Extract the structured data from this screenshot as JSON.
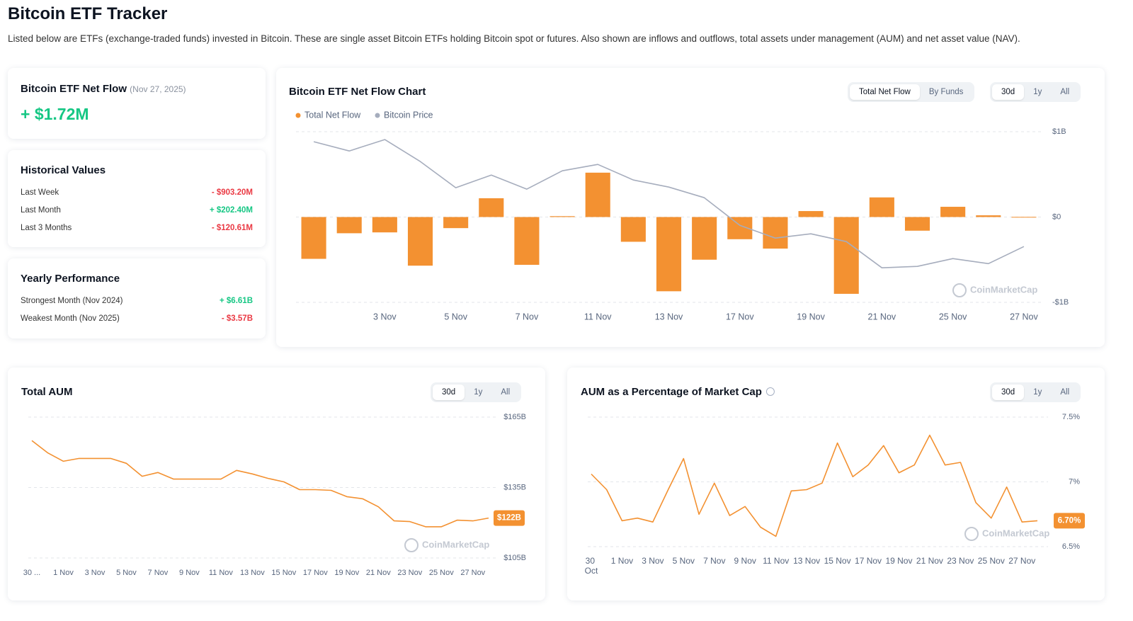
{
  "header": {
    "title": "Bitcoin ETF Tracker",
    "description": "Listed below are ETFs (exchange-traded funds) invested in Bitcoin. These are single asset Bitcoin ETFs holding Bitcoin spot or futures. Also shown are inflows and outflows, total assets under management (AUM) and net asset value (NAV)."
  },
  "net_flow_card": {
    "title": "Bitcoin ETF Net Flow",
    "date": "(Nov 27, 2025)",
    "value": "+ $1.72M"
  },
  "historical_values": {
    "title": "Historical Values",
    "rows": [
      {
        "label": "Last Week",
        "value": "- $903.20M"
      },
      {
        "label": "Last Month",
        "value": "+ $202.40M"
      },
      {
        "label": "Last 3 Months",
        "value": "- $120.61M"
      }
    ]
  },
  "yearly_performance": {
    "title": "Yearly Performance",
    "rows": [
      {
        "label": "Strongest Month (Nov 2024)",
        "value": "+ $6.61B"
      },
      {
        "label": "Weakest Month (Nov 2025)",
        "value": "- $3.57B"
      }
    ]
  },
  "tabs": {
    "view": [
      "Total Net Flow",
      "By Funds"
    ],
    "range": [
      "30d",
      "1y",
      "All"
    ]
  },
  "watermark": "CoinMarketCap",
  "chart_data": [
    {
      "type": "bar",
      "title": "Bitcoin ETF Net Flow Chart",
      "categories": [
        null,
        null,
        "3 Nov",
        null,
        "5 Nov",
        null,
        "7 Nov",
        null,
        "11 Nov",
        null,
        "13 Nov",
        null,
        "17 Nov",
        null,
        "19 Nov",
        null,
        "21 Nov",
        null,
        "25 Nov",
        null,
        "27 Nov"
      ],
      "series": [
        {
          "name": "Total Net Flow",
          "type": "bar",
          "color": "#f39131",
          "values": [
            -0.49,
            -0.19,
            -0.18,
            -0.57,
            -0.13,
            0.22,
            -0.56,
            0.01,
            0.52,
            -0.29,
            -0.87,
            -0.5,
            -0.26,
            -0.37,
            0.07,
            -0.9,
            0.23,
            -0.16,
            0.12,
            0.02,
            0.00172
          ]
        },
        {
          "name": "Bitcoin Price",
          "type": "line",
          "color": "#a6adbd",
          "axis": "y2",
          "values": [
            109570,
            107700,
            110000,
            105550,
            100240,
            102820,
            99950,
            103680,
            104970,
            101810,
            100380,
            98220,
            92620,
            90040,
            90900,
            89320,
            84000,
            84290,
            85870,
            84860,
            88310
          ]
        }
      ],
      "ylim": [
        -1,
        1
      ],
      "yticks": [
        {
          "value": 1,
          "label": "$1B"
        },
        {
          "value": 0,
          "label": "$0"
        },
        {
          "value": -1,
          "label": "-$1B"
        }
      ],
      "y2lim": [
        77000,
        111600
      ],
      "grid": true
    },
    {
      "type": "line",
      "title": "Total AUM",
      "color": "#f39131",
      "categories": [
        "30 ...",
        null,
        "1 Nov",
        null,
        "3 Nov",
        null,
        "5 Nov",
        null,
        "7 Nov",
        null,
        "9 Nov",
        null,
        "11 Nov",
        null,
        "13 Nov",
        null,
        "15 Nov",
        null,
        "17 Nov",
        null,
        "19 Nov",
        null,
        "21 Nov",
        null,
        "23 Nov",
        null,
        "25 Nov",
        null,
        "27 Nov",
        null
      ],
      "values": [
        155.0,
        149.8,
        146.2,
        147.4,
        147.4,
        147.4,
        145.3,
        139.8,
        141.4,
        138.6,
        138.6,
        138.6,
        138.6,
        142.3,
        140.8,
        138.9,
        137.4,
        134.1,
        134.1,
        133.8,
        131.1,
        130.2,
        126.8,
        120.8,
        120.5,
        118.3,
        118.3,
        121.1,
        120.8,
        122
      ],
      "value_labels": [
        null,
        null,
        null,
        null,
        null,
        null,
        null,
        null,
        null,
        null,
        null,
        null,
        null,
        null,
        null,
        null,
        null,
        null,
        null,
        null,
        null,
        null,
        null,
        null,
        null,
        null,
        null,
        null,
        null,
        "$122B"
      ],
      "ylim": [
        105,
        165
      ],
      "yticks": [
        {
          "value": 165,
          "label": "$165B"
        },
        {
          "value": 135,
          "label": "$135B"
        },
        {
          "value": 105,
          "label": "$105B"
        }
      ],
      "grid": true
    },
    {
      "type": "line",
      "title": "AUM as a Percentage of Market Cap",
      "color": "#f39131",
      "categories": [
        "30 Oct",
        null,
        "1 Nov",
        null,
        "3 Nov",
        null,
        "5 Nov",
        null,
        "7 Nov",
        null,
        "9 Nov",
        null,
        "11 Nov",
        null,
        "13 Nov",
        null,
        "15 Nov",
        null,
        "17 Nov",
        null,
        "19 Nov",
        null,
        "21 Nov",
        null,
        "23 Nov",
        null,
        "25 Nov",
        null,
        "27 Nov",
        null
      ],
      "values": [
        7.06,
        6.94,
        6.7,
        6.72,
        6.69,
        6.94,
        7.18,
        6.75,
        6.99,
        6.74,
        6.81,
        6.65,
        6.58,
        6.93,
        6.94,
        6.99,
        7.3,
        7.04,
        7.13,
        7.28,
        7.07,
        7.13,
        7.36,
        7.13,
        7.15,
        6.84,
        6.72,
        6.96,
        6.69,
        6.7
      ],
      "value_labels": [
        null,
        null,
        null,
        null,
        null,
        null,
        null,
        null,
        null,
        null,
        null,
        null,
        null,
        null,
        null,
        null,
        null,
        null,
        null,
        null,
        null,
        null,
        null,
        null,
        null,
        null,
        null,
        null,
        null,
        "6.70%"
      ],
      "ylim": [
        6.5,
        7.5
      ],
      "yticks": [
        {
          "value": 7.5,
          "label": "7.5%"
        },
        {
          "value": 7,
          "label": "7%"
        },
        {
          "value": 6.5,
          "label": "6.5%"
        }
      ],
      "grid": true
    }
  ]
}
